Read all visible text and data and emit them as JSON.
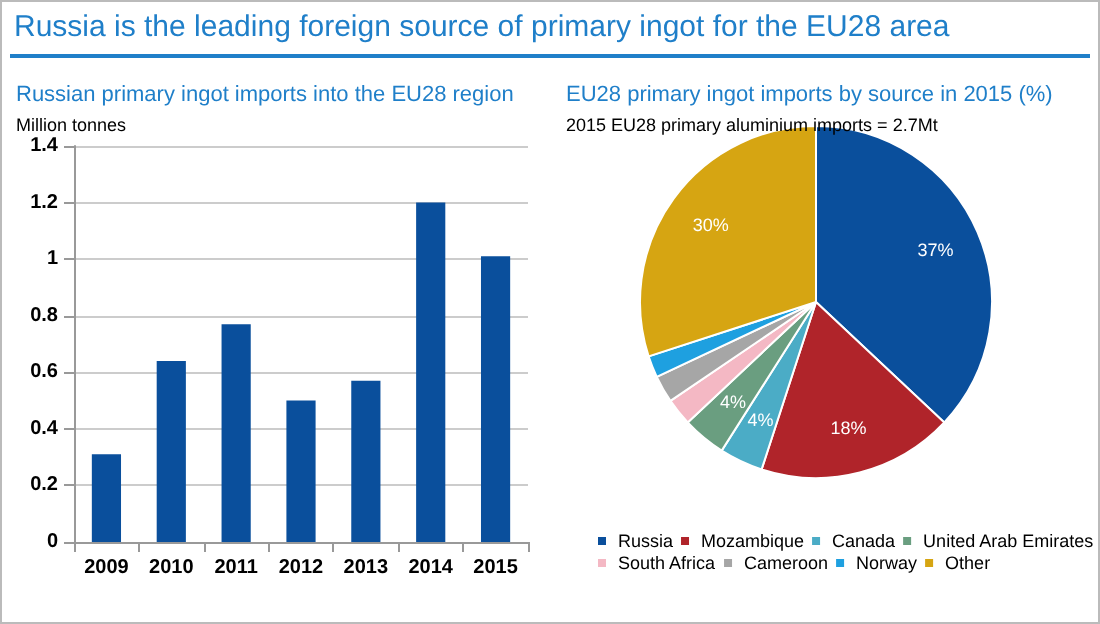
{
  "chart_data": [
    {
      "type": "bar",
      "title": "Russia is the leading foreign source of primary ingot for the EU28 area",
      "subtitle": "Russian primary ingot imports into the EU28 region",
      "ylabel": "Million tonnes",
      "categories": [
        "2009",
        "2010",
        "2011",
        "2012",
        "2013",
        "2014",
        "2015"
      ],
      "values": [
        0.31,
        0.64,
        0.77,
        0.5,
        0.57,
        1.2,
        1.01
      ],
      "color": "#0a4f9c",
      "ylim": [
        0,
        1.4
      ],
      "yticks": [
        0,
        0.2,
        0.4,
        0.6,
        0.8,
        1,
        1.2,
        1.4
      ],
      "grid": "y",
      "legend": false
    },
    {
      "type": "pie",
      "title": "EU28 primary ingot imports by source in 2015 (%)",
      "subtitle": "2015 EU28 primary aluminium imports = 2.7Mt",
      "categories": [
        "Russia",
        "Mozambique",
        "Canada",
        "United Arab Emirates",
        "South Africa",
        "Cameroon",
        "Norway",
        "Other"
      ],
      "values": [
        37,
        18,
        4,
        4,
        2.5,
        2.5,
        2,
        30
      ],
      "colors": [
        "#0a4f9c",
        "#b0242a",
        "#4bacc6",
        "#6a9e80",
        "#f4b8c4",
        "#a6a6a6",
        "#1ea0e0",
        "#d6a512"
      ],
      "value_labels": [
        "37%",
        "18%",
        "4%",
        "4%",
        null,
        null,
        null,
        "30%"
      ],
      "legend": "bottom"
    }
  ]
}
